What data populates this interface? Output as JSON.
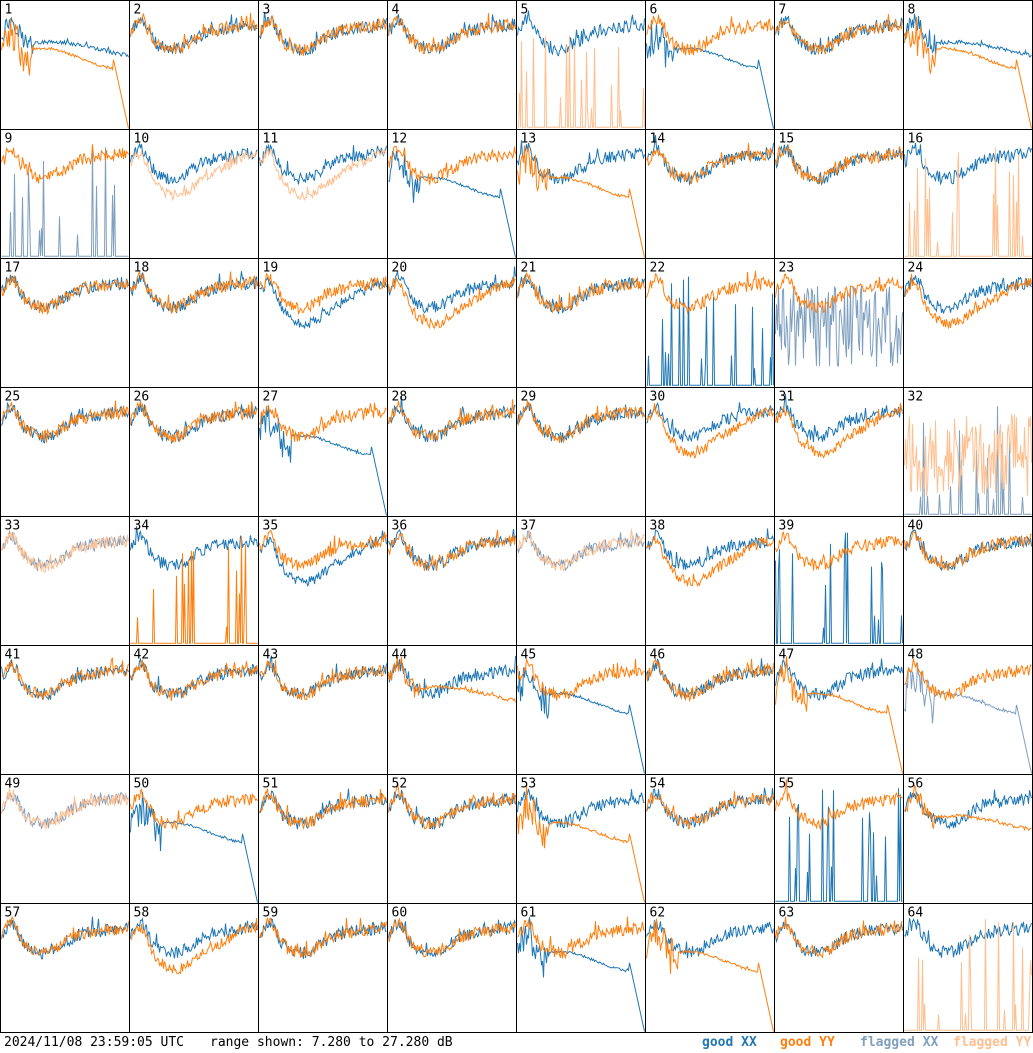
{
  "footer": {
    "timestamp": "2024/11/08 23:59:05 UTC",
    "range": "range shown: 7.280 to 27.280 dB",
    "legend": {
      "good_xx": "good XX",
      "good_yy": "good YY",
      "flagged_xx": "flagged XX",
      "flagged_yy": "flagged YY"
    }
  },
  "colors": {
    "good_xx": "#1f77b4",
    "good_yy": "#ff7f0e",
    "flagged_xx": "#7f9fbf",
    "flagged_yy": "#ffbf8f"
  },
  "chart_data": {
    "type": "line",
    "ylim": [
      7.28,
      27.28
    ],
    "grid_rows": 8,
    "grid_cols": 8,
    "panels": [
      {
        "label": "1",
        "xx": {
          "status": "good",
          "shape": "plateau"
        },
        "yy": {
          "status": "good",
          "shape": "dropout_end"
        }
      },
      {
        "label": "2",
        "xx": {
          "status": "good",
          "shape": "normal"
        },
        "yy": {
          "status": "good",
          "shape": "normal"
        }
      },
      {
        "label": "3",
        "xx": {
          "status": "good",
          "shape": "normal"
        },
        "yy": {
          "status": "good",
          "shape": "normal"
        }
      },
      {
        "label": "4",
        "xx": {
          "status": "good",
          "shape": "normal"
        },
        "yy": {
          "status": "good",
          "shape": "normal"
        }
      },
      {
        "label": "5",
        "xx": {
          "status": "good",
          "shape": "normal"
        },
        "yy": {
          "status": "flagged",
          "shape": "spikes"
        }
      },
      {
        "label": "6",
        "xx": {
          "status": "good",
          "shape": "dropout_end"
        },
        "yy": {
          "status": "good",
          "shape": "normal"
        }
      },
      {
        "label": "7",
        "xx": {
          "status": "good",
          "shape": "normal"
        },
        "yy": {
          "status": "good",
          "shape": "normal"
        }
      },
      {
        "label": "8",
        "xx": {
          "status": "good",
          "shape": "plateau"
        },
        "yy": {
          "status": "good",
          "shape": "dropout_end"
        }
      },
      {
        "label": "9",
        "xx": {
          "status": "flagged",
          "shape": "spikes"
        },
        "yy": {
          "status": "good",
          "shape": "normal"
        }
      },
      {
        "label": "10",
        "xx": {
          "status": "good",
          "shape": "normal"
        },
        "yy": {
          "status": "flagged",
          "shape": "low"
        }
      },
      {
        "label": "11",
        "xx": {
          "status": "good",
          "shape": "normal"
        },
        "yy": {
          "status": "flagged",
          "shape": "low"
        }
      },
      {
        "label": "12",
        "xx": {
          "status": "good",
          "shape": "dropout_end"
        },
        "yy": {
          "status": "good",
          "shape": "normal"
        }
      },
      {
        "label": "13",
        "xx": {
          "status": "good",
          "shape": "normal"
        },
        "yy": {
          "status": "good",
          "shape": "dropout_end"
        }
      },
      {
        "label": "14",
        "xx": {
          "status": "good",
          "shape": "normal"
        },
        "yy": {
          "status": "good",
          "shape": "normal"
        }
      },
      {
        "label": "15",
        "xx": {
          "status": "good",
          "shape": "normal"
        },
        "yy": {
          "status": "good",
          "shape": "normal"
        }
      },
      {
        "label": "16",
        "xx": {
          "status": "good",
          "shape": "normal"
        },
        "yy": {
          "status": "flagged",
          "shape": "spikes"
        }
      },
      {
        "label": "17",
        "xx": {
          "status": "good",
          "shape": "normal"
        },
        "yy": {
          "status": "good",
          "shape": "normal"
        }
      },
      {
        "label": "18",
        "xx": {
          "status": "good",
          "shape": "normal"
        },
        "yy": {
          "status": "good",
          "shape": "normal"
        }
      },
      {
        "label": "19",
        "xx": {
          "status": "good",
          "shape": "low"
        },
        "yy": {
          "status": "good",
          "shape": "normal"
        }
      },
      {
        "label": "20",
        "xx": {
          "status": "good",
          "shape": "normal"
        },
        "yy": {
          "status": "good",
          "shape": "low"
        }
      },
      {
        "label": "21",
        "xx": {
          "status": "good",
          "shape": "normal"
        },
        "yy": {
          "status": "good",
          "shape": "normal"
        }
      },
      {
        "label": "22",
        "xx": {
          "status": "good",
          "shape": "spikes"
        },
        "yy": {
          "status": "good",
          "shape": "normal"
        }
      },
      {
        "label": "23",
        "xx": {
          "status": "flagged",
          "shape": "noisy"
        },
        "yy": {
          "status": "good",
          "shape": "normal"
        }
      },
      {
        "label": "24",
        "xx": {
          "status": "good",
          "shape": "normal"
        },
        "yy": {
          "status": "good",
          "shape": "low"
        }
      },
      {
        "label": "25",
        "xx": {
          "status": "good",
          "shape": "normal"
        },
        "yy": {
          "status": "good",
          "shape": "normal"
        }
      },
      {
        "label": "26",
        "xx": {
          "status": "good",
          "shape": "normal"
        },
        "yy": {
          "status": "good",
          "shape": "normal"
        }
      },
      {
        "label": "27",
        "xx": {
          "status": "good",
          "shape": "dropout_end"
        },
        "yy": {
          "status": "good",
          "shape": "normal"
        }
      },
      {
        "label": "28",
        "xx": {
          "status": "good",
          "shape": "normal"
        },
        "yy": {
          "status": "good",
          "shape": "normal"
        }
      },
      {
        "label": "29",
        "xx": {
          "status": "good",
          "shape": "normal"
        },
        "yy": {
          "status": "good",
          "shape": "normal"
        }
      },
      {
        "label": "30",
        "xx": {
          "status": "good",
          "shape": "normal"
        },
        "yy": {
          "status": "good",
          "shape": "low"
        }
      },
      {
        "label": "31",
        "xx": {
          "status": "good",
          "shape": "normal"
        },
        "yy": {
          "status": "good",
          "shape": "low"
        }
      },
      {
        "label": "32",
        "xx": {
          "status": "flagged",
          "shape": "spikes"
        },
        "yy": {
          "status": "flagged",
          "shape": "noisy"
        }
      },
      {
        "label": "33",
        "xx": {
          "status": "flagged",
          "shape": "normal"
        },
        "yy": {
          "status": "flagged",
          "shape": "normal"
        }
      },
      {
        "label": "34",
        "xx": {
          "status": "good",
          "shape": "normal"
        },
        "yy": {
          "status": "good",
          "shape": "spikes"
        }
      },
      {
        "label": "35",
        "xx": {
          "status": "good",
          "shape": "low"
        },
        "yy": {
          "status": "good",
          "shape": "normal"
        }
      },
      {
        "label": "36",
        "xx": {
          "status": "good",
          "shape": "normal"
        },
        "yy": {
          "status": "good",
          "shape": "normal"
        }
      },
      {
        "label": "37",
        "xx": {
          "status": "flagged",
          "shape": "normal"
        },
        "yy": {
          "status": "flagged",
          "shape": "normal"
        }
      },
      {
        "label": "38",
        "xx": {
          "status": "good",
          "shape": "normal"
        },
        "yy": {
          "status": "good",
          "shape": "low"
        }
      },
      {
        "label": "39",
        "xx": {
          "status": "good",
          "shape": "spikes"
        },
        "yy": {
          "status": "good",
          "shape": "normal"
        }
      },
      {
        "label": "40",
        "xx": {
          "status": "good",
          "shape": "normal"
        },
        "yy": {
          "status": "good",
          "shape": "normal"
        }
      },
      {
        "label": "41",
        "xx": {
          "status": "good",
          "shape": "normal"
        },
        "yy": {
          "status": "good",
          "shape": "normal"
        }
      },
      {
        "label": "42",
        "xx": {
          "status": "good",
          "shape": "normal"
        },
        "yy": {
          "status": "good",
          "shape": "normal"
        }
      },
      {
        "label": "43",
        "xx": {
          "status": "good",
          "shape": "normal"
        },
        "yy": {
          "status": "good",
          "shape": "normal"
        }
      },
      {
        "label": "44",
        "xx": {
          "status": "good",
          "shape": "normal"
        },
        "yy": {
          "status": "good",
          "shape": "plateau"
        }
      },
      {
        "label": "45",
        "xx": {
          "status": "good",
          "shape": "dropout_end"
        },
        "yy": {
          "status": "good",
          "shape": "normal"
        }
      },
      {
        "label": "46",
        "xx": {
          "status": "good",
          "shape": "normal"
        },
        "yy": {
          "status": "good",
          "shape": "normal"
        }
      },
      {
        "label": "47",
        "xx": {
          "status": "good",
          "shape": "normal"
        },
        "yy": {
          "status": "good",
          "shape": "dropout_end"
        }
      },
      {
        "label": "48",
        "xx": {
          "status": "flagged",
          "shape": "dropout_end"
        },
        "yy": {
          "status": "good",
          "shape": "normal"
        }
      },
      {
        "label": "49",
        "xx": {
          "status": "flagged",
          "shape": "normal"
        },
        "yy": {
          "status": "flagged",
          "shape": "normal"
        }
      },
      {
        "label": "50",
        "xx": {
          "status": "good",
          "shape": "dropout_end"
        },
        "yy": {
          "status": "good",
          "shape": "normal"
        }
      },
      {
        "label": "51",
        "xx": {
          "status": "good",
          "shape": "normal"
        },
        "yy": {
          "status": "good",
          "shape": "normal"
        }
      },
      {
        "label": "52",
        "xx": {
          "status": "good",
          "shape": "normal"
        },
        "yy": {
          "status": "good",
          "shape": "normal"
        }
      },
      {
        "label": "53",
        "xx": {
          "status": "good",
          "shape": "normal"
        },
        "yy": {
          "status": "good",
          "shape": "dropout_end"
        }
      },
      {
        "label": "54",
        "xx": {
          "status": "good",
          "shape": "normal"
        },
        "yy": {
          "status": "good",
          "shape": "normal"
        }
      },
      {
        "label": "55",
        "xx": {
          "status": "good",
          "shape": "spikes"
        },
        "yy": {
          "status": "good",
          "shape": "normal"
        }
      },
      {
        "label": "56",
        "xx": {
          "status": "good",
          "shape": "normal"
        },
        "yy": {
          "status": "good",
          "shape": "plateau"
        }
      },
      {
        "label": "57",
        "xx": {
          "status": "good",
          "shape": "normal"
        },
        "yy": {
          "status": "good",
          "shape": "normal"
        }
      },
      {
        "label": "58",
        "xx": {
          "status": "good",
          "shape": "normal"
        },
        "yy": {
          "status": "good",
          "shape": "low"
        }
      },
      {
        "label": "59",
        "xx": {
          "status": "good",
          "shape": "normal"
        },
        "yy": {
          "status": "good",
          "shape": "normal"
        }
      },
      {
        "label": "60",
        "xx": {
          "status": "good",
          "shape": "normal"
        },
        "yy": {
          "status": "good",
          "shape": "normal"
        }
      },
      {
        "label": "61",
        "xx": {
          "status": "good",
          "shape": "dropout_end"
        },
        "yy": {
          "status": "good",
          "shape": "normal"
        }
      },
      {
        "label": "62",
        "xx": {
          "status": "good",
          "shape": "normal"
        },
        "yy": {
          "status": "good",
          "shape": "dropout_end"
        }
      },
      {
        "label": "63",
        "xx": {
          "status": "good",
          "shape": "normal"
        },
        "yy": {
          "status": "good",
          "shape": "normal"
        }
      },
      {
        "label": "64",
        "xx": {
          "status": "good",
          "shape": "normal"
        },
        "yy": {
          "status": "flagged",
          "shape": "spikes"
        }
      }
    ]
  }
}
